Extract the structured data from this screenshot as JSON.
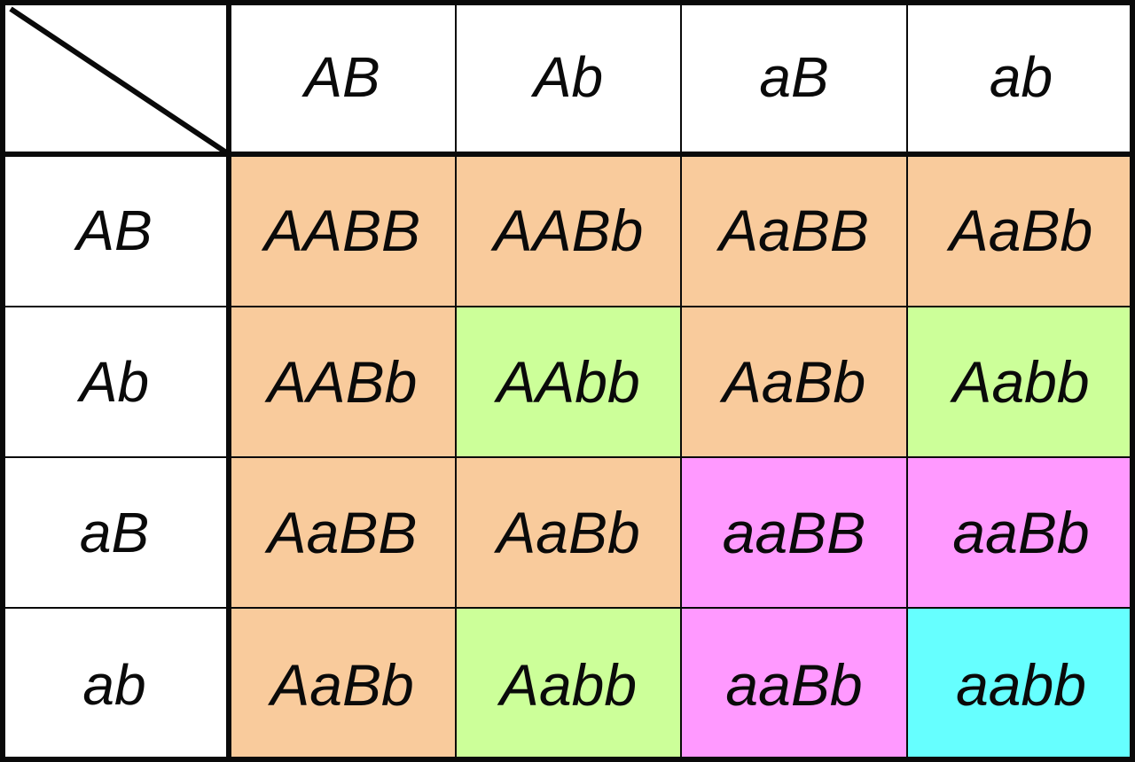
{
  "punnett_square": {
    "column_headers": [
      "AB",
      "Ab",
      "aB",
      "ab"
    ],
    "row_headers": [
      "AB",
      "Ab",
      "aB",
      "ab"
    ],
    "cells": [
      [
        "AABB",
        "AABb",
        "AaBB",
        "AaBb"
      ],
      [
        "AABb",
        "AAbb",
        "AaBb",
        "Aabb"
      ],
      [
        "AaBB",
        "AaBb",
        "aaBB",
        "aaBb"
      ],
      [
        "AaBb",
        "Aabb",
        "aaBb",
        "aabb"
      ]
    ],
    "cell_colors": [
      [
        "#f9cb9c",
        "#f9cb9c",
        "#f9cb9c",
        "#f9cb9c"
      ],
      [
        "#f9cb9c",
        "#ccff99",
        "#f9cb9c",
        "#ccff99"
      ],
      [
        "#f9cb9c",
        "#f9cb9c",
        "#ff99ff",
        "#ff99ff"
      ],
      [
        "#f9cb9c",
        "#ccff99",
        "#ff99ff",
        "#66ffff"
      ]
    ],
    "header_background": "#ffffff",
    "line_color": "#0a0a0a"
  }
}
